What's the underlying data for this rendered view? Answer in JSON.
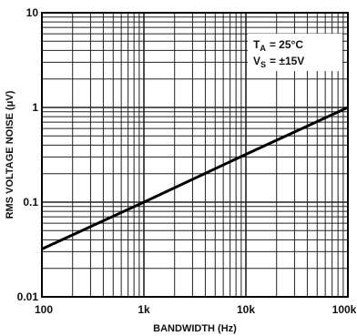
{
  "chart_data": {
    "type": "line",
    "title": "",
    "xlabel": "BANDWIDTH (Hz)",
    "ylabel": "RMS VOLTAGE NOISE (μV)",
    "x_scale": "log",
    "y_scale": "log",
    "xlim": [
      100,
      100000
    ],
    "ylim": [
      0.01,
      10
    ],
    "x_ticks": [
      {
        "value": 100,
        "label": "100"
      },
      {
        "value": 1000,
        "label": "1k"
      },
      {
        "value": 10000,
        "label": "10k"
      },
      {
        "value": 100000,
        "label": "100k"
      }
    ],
    "y_ticks": [
      {
        "value": 10,
        "label": "10"
      },
      {
        "value": 1,
        "label": "1"
      },
      {
        "value": 0.1,
        "label": "0.1"
      },
      {
        "value": 0.01,
        "label": "0.01"
      }
    ],
    "grid": true,
    "series": [
      {
        "x": [
          100,
          1000,
          10000,
          100000
        ],
        "y": [
          0.032,
          0.1,
          0.32,
          1.0
        ]
      }
    ],
    "annotations": {
      "ta_symbol": "T",
      "ta_sub": "A",
      "ta_value": "= 25°C",
      "vs_symbol": "V",
      "vs_sub": "S",
      "vs_value": "= ±15V"
    },
    "colors": {
      "line": "#000000",
      "grid": "#222222",
      "background": "#ffffff"
    }
  }
}
